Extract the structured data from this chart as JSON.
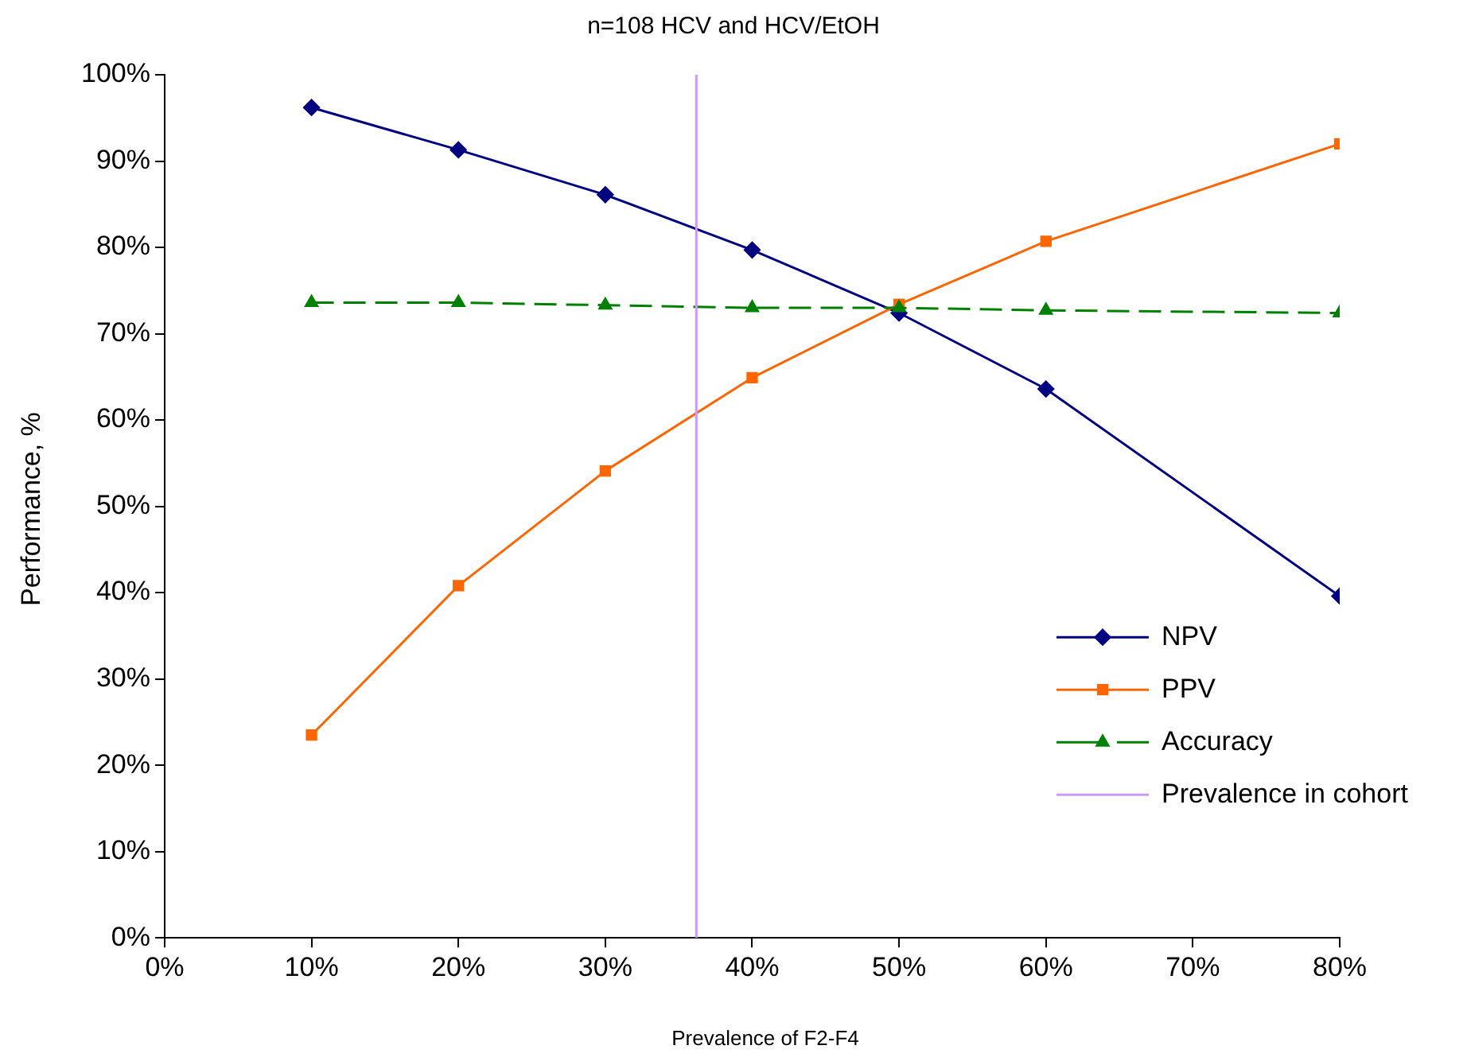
{
  "chart_data": {
    "type": "line",
    "title": "n=108 HCV and HCV/EtOH",
    "xlabel": "Prevalence of F2-F4",
    "ylabel": "Performance, %",
    "x": [
      10,
      20,
      30,
      40,
      50,
      60,
      80
    ],
    "series": [
      {
        "name": "NPV",
        "color": "#000080",
        "marker": "diamond",
        "line_style": "solid",
        "values": [
          96.2,
          91.3,
          86.1,
          79.7,
          72.4,
          63.6,
          39.6
        ]
      },
      {
        "name": "PPV",
        "color": "#ff6600",
        "marker": "square",
        "line_style": "solid",
        "values": [
          23.5,
          40.8,
          54.1,
          64.9,
          73.4,
          80.7,
          92.0
        ]
      },
      {
        "name": "Accuracy",
        "color": "#008000",
        "marker": "triangle",
        "line_style": "dashed",
        "values": [
          73.6,
          73.6,
          73.3,
          73.0,
          73.0,
          72.7,
          72.4
        ]
      },
      {
        "name": "Prevalence in cohort",
        "color": "#cc99ff",
        "marker": "none",
        "line_style": "solid",
        "x": [
          36.2,
          36.2
        ],
        "values": [
          0,
          100
        ]
      }
    ],
    "xlim": [
      0,
      80
    ],
    "ylim": [
      0,
      100
    ],
    "xticks": [
      {
        "value": 0,
        "label": "0%"
      },
      {
        "value": 10,
        "label": "10%"
      },
      {
        "value": 20,
        "label": "20%"
      },
      {
        "value": 30,
        "label": "30%"
      },
      {
        "value": 40,
        "label": "40%"
      },
      {
        "value": 50,
        "label": "50%"
      },
      {
        "value": 60,
        "label": "60%"
      },
      {
        "value": 70,
        "label": "70%"
      },
      {
        "value": 80,
        "label": "80%"
      }
    ],
    "yticks": [
      {
        "value": 0,
        "label": "0%"
      },
      {
        "value": 10,
        "label": "10%"
      },
      {
        "value": 20,
        "label": "20%"
      },
      {
        "value": 30,
        "label": "30%"
      },
      {
        "value": 40,
        "label": "40%"
      },
      {
        "value": 50,
        "label": "50%"
      },
      {
        "value": 60,
        "label": "60%"
      },
      {
        "value": 70,
        "label": "70%"
      },
      {
        "value": 80,
        "label": "80%"
      },
      {
        "value": 90,
        "label": "90%"
      },
      {
        "value": 100,
        "label": "100%"
      }
    ],
    "grid": false,
    "legend": "right"
  }
}
